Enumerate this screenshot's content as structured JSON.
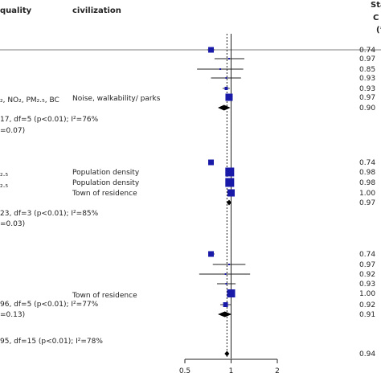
{
  "headers": {
    "quality": "quality",
    "civilization": "civilization",
    "right_1": "Sta",
    "right_2": "C",
    "right_3": "(’"
  },
  "group_labels": [
    {
      "left": "₂, NO₂, PM₂.₅, BC",
      "civ": "Noise, walkability/ parks"
    },
    {
      "left": "₂.₅",
      "civ": "Population density"
    },
    {
      "left": "₂.₅",
      "civ": "Population density"
    },
    {
      "left": "",
      "civ": "Town of residence"
    },
    {
      "left": "",
      "civ": "Town of residence"
    }
  ],
  "stats": [
    "17, df=5 (p<0.01); I²=76%",
    "=0.07)",
    "23, df=3 (p<0.01); I²=85%",
    "=0.03)",
    "96, df=5 (p<0.01); I²=77%",
    "=0.13)",
    "95, df=15 (p<0.01); I²=78%"
  ],
  "colors": {
    "study": "#1a1aa8",
    "summary": "#000000",
    "line": "#222222"
  },
  "chart_data": {
    "type": "forest",
    "x_scale": "log",
    "xlim": [
      0.5,
      2
    ],
    "x_ticks": [
      "0.5",
      "1",
      "2"
    ],
    "reference_line": 1,
    "pooled_dotted_line": 0.94,
    "rows": [
      {
        "est": 0.74,
        "lo": 0.7,
        "hi": 0.78,
        "w": 7,
        "label": "0.74",
        "kind": "study"
      },
      {
        "est": 0.97,
        "lo": 0.78,
        "hi": 1.22,
        "w": 2,
        "label": "0.97",
        "kind": "study"
      },
      {
        "est": 0.85,
        "lo": 0.6,
        "hi": 1.2,
        "w": 2,
        "label": "0.85",
        "kind": "study"
      },
      {
        "est": 0.93,
        "lo": 0.74,
        "hi": 1.16,
        "w": 2,
        "label": "0.93",
        "kind": "study"
      },
      {
        "est": 0.93,
        "lo": 0.88,
        "hi": 0.98,
        "w": 4,
        "label": "0.93",
        "kind": "study"
      },
      {
        "est": 0.97,
        "lo": 0.95,
        "hi": 0.99,
        "w": 9,
        "label": "0.97",
        "kind": "study"
      },
      {
        "est": 0.9,
        "lo": 0.82,
        "hi": 0.99,
        "w": 0,
        "label": "0.90",
        "kind": "summary"
      },
      {
        "est": 0.74,
        "lo": 0.71,
        "hi": 0.77,
        "w": 7,
        "label": "0.74",
        "kind": "study"
      },
      {
        "est": 0.98,
        "lo": 0.96,
        "hi": 1.0,
        "w": 11,
        "label": "0.98",
        "kind": "study"
      },
      {
        "est": 0.98,
        "lo": 0.96,
        "hi": 1.0,
        "w": 11,
        "label": "0.98",
        "kind": "study"
      },
      {
        "est": 1.0,
        "lo": 0.98,
        "hi": 1.02,
        "w": 9,
        "label": "1.00",
        "kind": "study"
      },
      {
        "est": 0.97,
        "lo": 0.965,
        "hi": 0.975,
        "w": 0,
        "label": "0.97",
        "kind": "summary"
      },
      {
        "est": 0.74,
        "lo": 0.71,
        "hi": 0.78,
        "w": 7,
        "label": "0.74",
        "kind": "study"
      },
      {
        "est": 0.97,
        "lo": 0.76,
        "hi": 1.24,
        "w": 2,
        "label": "0.97",
        "kind": "study"
      },
      {
        "est": 0.92,
        "lo": 0.62,
        "hi": 1.33,
        "w": 2,
        "label": "0.92",
        "kind": "study"
      },
      {
        "est": 0.93,
        "lo": 0.81,
        "hi": 1.07,
        "w": 2,
        "label": "0.93",
        "kind": "study"
      },
      {
        "est": 1.0,
        "lo": 0.97,
        "hi": 1.04,
        "w": 10,
        "label": "1.00",
        "kind": "study"
      },
      {
        "est": 0.92,
        "lo": 0.85,
        "hi": 1.0,
        "w": 6,
        "label": "0.92",
        "kind": "study"
      },
      {
        "est": 0.91,
        "lo": 0.82,
        "hi": 1.01,
        "w": 0,
        "label": "0.91",
        "kind": "summary"
      },
      {
        "est": 0.94,
        "lo": 0.93,
        "hi": 0.95,
        "w": 0,
        "label": "0.94",
        "kind": "summary"
      }
    ]
  }
}
